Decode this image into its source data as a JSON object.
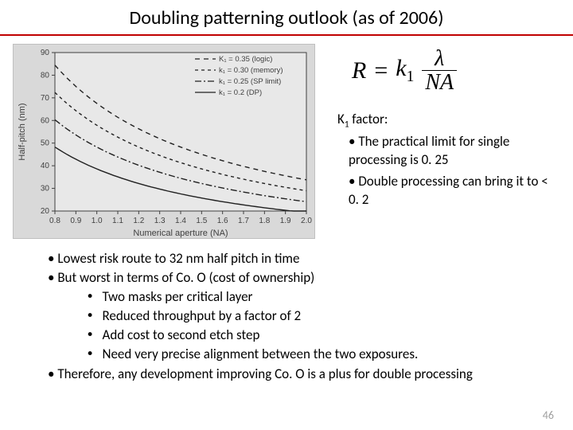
{
  "title": "Doubling patterning outlook (as of 2006)",
  "chart": {
    "type": "line",
    "background_color": "#d9d9d9",
    "plot_background": "#e8e8e8",
    "axis_color": "#404040",
    "line_color": "#202020",
    "text_color": "#404040",
    "tick_fontsize": 10,
    "label_fontsize": 11,
    "xlabel": "Numerical aperture (NA)",
    "ylabel": "Half-pitch (nm)",
    "xlim": [
      0.8,
      2.0
    ],
    "ylim": [
      20,
      90
    ],
    "xticks": [
      0.8,
      0.9,
      1.0,
      1.1,
      1.2,
      1.3,
      1.4,
      1.5,
      1.6,
      1.7,
      1.8,
      1.9,
      2.0
    ],
    "yticks": [
      20,
      30,
      40,
      50,
      60,
      70,
      80,
      90
    ],
    "legend_items": [
      {
        "label": "K₁ = 0.35 (logic)",
        "dash": "6,5"
      },
      {
        "label": "k₁ = 0.30 (memory)",
        "dash": "4,4"
      },
      {
        "label": "k₁ = 0.25 (SP limit)",
        "dash": "8,3,2,3"
      },
      {
        "label": "k₁ = 0.2 (DP)",
        "dash": "none"
      }
    ],
    "series": [
      {
        "k": 0.35,
        "lambda_nm": 193,
        "dash": "6,5"
      },
      {
        "k": 0.3,
        "lambda_nm": 193,
        "dash": "4,4"
      },
      {
        "k": 0.25,
        "lambda_nm": 193,
        "dash": "8,3,2,3"
      },
      {
        "k": 0.2,
        "lambda_nm": 193,
        "dash": "none"
      }
    ]
  },
  "formula": {
    "lhs": "R",
    "eq": "=",
    "k": "k",
    "ksub": "1",
    "num": "λ",
    "den": "NA"
  },
  "k1": {
    "heading_pre": "K",
    "heading_sub": "1",
    "heading_post": " factor:",
    "bullets": [
      "The practical limit for single processing is 0. 25",
      "Double processing can bring it to < 0. 2"
    ]
  },
  "lower_bullets": {
    "b1": "Lowest risk route to 32 nm half pitch in time",
    "b2": "But worst in terms of Co. O (cost of ownership)",
    "sub": [
      "Two masks per critical layer",
      "Reduced throughput by a factor of 2",
      "Add cost to second etch step",
      "Need very precise alignment between the two exposures."
    ],
    "b3": "Therefore, any development improving Co. O is a plus for double processing"
  },
  "pagenum": "46"
}
